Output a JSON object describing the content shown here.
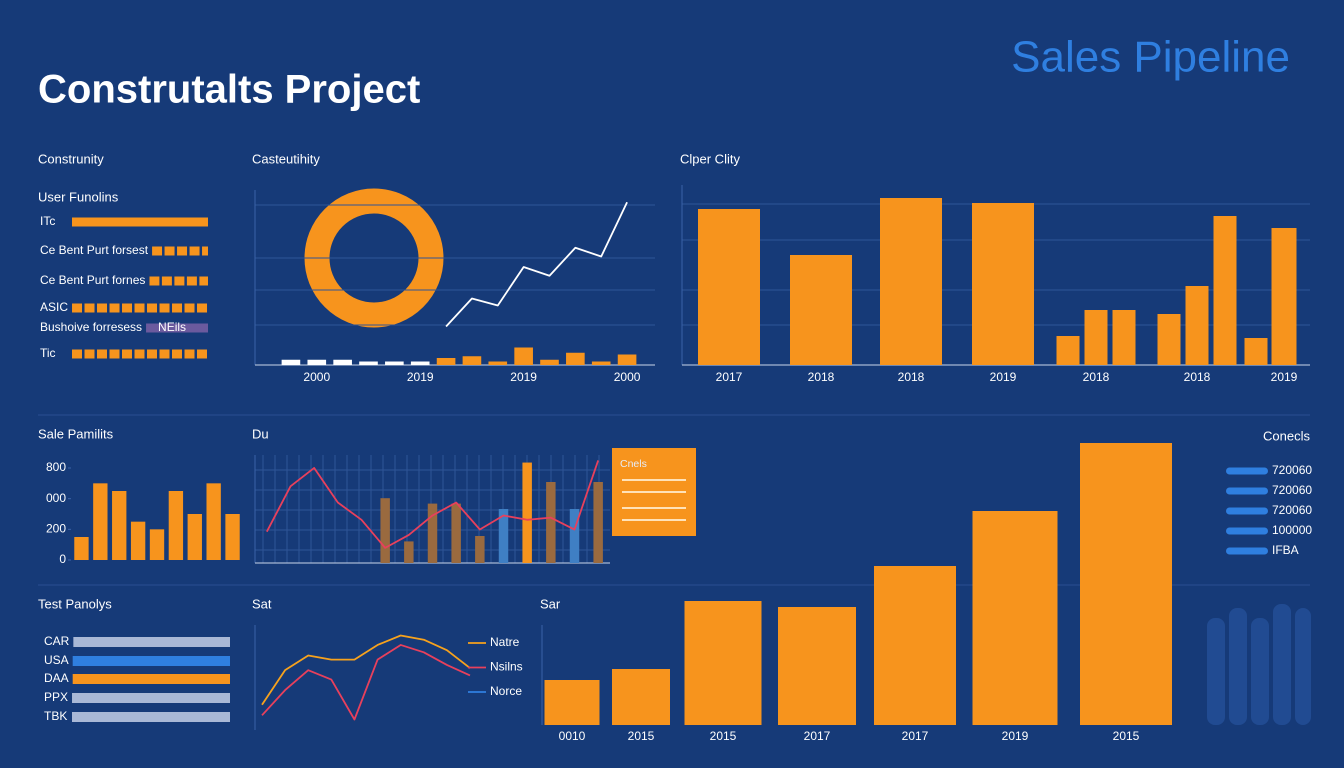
{
  "header": {
    "title": "Construtalts Project",
    "brand": "Sales Pipeline"
  },
  "chart_data": [
    {
      "type": "hbar",
      "title": "Construnity",
      "subtitle": "User Funolins",
      "categories": [
        "ITc",
        "Ce Bent Purt forsest",
        "Ce Bent Purt fornes",
        "ASIC",
        "Bushoive forresess",
        "Tic"
      ],
      "values": [
        100,
        100,
        100,
        100,
        100,
        100
      ],
      "xlim": [
        0,
        100
      ],
      "colors": [
        "#f7941d",
        "#f7941d",
        "#f7941d",
        "#f7941d",
        "#6b5a9e",
        "#f7941d"
      ],
      "segmented": [
        false,
        true,
        true,
        true,
        false,
        true
      ],
      "annotation": "NEils"
    },
    {
      "type": "combo",
      "title": "Casteutihity",
      "categories": [
        null,
        "2000",
        null,
        null,
        null,
        "2019",
        null,
        null,
        null,
        "2019",
        null,
        null,
        null,
        "2000"
      ],
      "ylim": [
        0,
        100
      ],
      "series": [
        {
          "kind": "bar",
          "color": "#ffffff",
          "values": [
            3,
            3,
            3,
            2,
            2,
            2,
            null,
            null,
            null,
            null,
            null,
            null,
            null,
            null
          ]
        },
        {
          "kind": "bar",
          "color": "#f7941d",
          "values": [
            null,
            null,
            null,
            null,
            null,
            null,
            4,
            5,
            2,
            10,
            3,
            7,
            2,
            6
          ]
        },
        {
          "kind": "line",
          "color": "#ffffff",
          "values": [
            null,
            null,
            null,
            null,
            null,
            null,
            22,
            38,
            34,
            56,
            51,
            67,
            62,
            93
          ]
        }
      ]
    },
    {
      "type": "bar",
      "title": "Clper Clity",
      "categories": [
        "2017",
        "2018",
        "2018",
        "2019",
        null,
        "2018",
        null,
        null,
        "2018",
        null,
        null,
        "2019"
      ],
      "values": [
        156,
        110,
        167,
        162,
        29,
        55,
        55,
        51,
        79,
        149,
        27,
        137
      ],
      "ylim": [
        0,
        180
      ],
      "color": "#f7941d"
    },
    {
      "type": "bar",
      "title": "Sale Pamilits",
      "values": [
        150,
        500,
        450,
        250,
        200,
        450,
        300,
        500,
        300
      ],
      "ylim": [
        0,
        600
      ],
      "yticks": [
        0,
        200,
        {
          "value": 400,
          "label": "000"
        },
        {
          "value": 600,
          "label": "800"
        }
      ],
      "color": "#f7941d"
    },
    {
      "type": "combo",
      "title": "Du",
      "annotation": "Cnels",
      "ylim": [
        0,
        100
      ],
      "series": [
        {
          "kind": "bar",
          "color": "#9a6a3f",
          "values": [
            null,
            null,
            null,
            null,
            null,
            60,
            20,
            55,
            55,
            25,
            null,
            null,
            75,
            null,
            75
          ]
        },
        {
          "kind": "bar",
          "color": "#f7941d",
          "values": [
            null,
            null,
            null,
            null,
            null,
            null,
            null,
            null,
            null,
            null,
            null,
            93,
            null,
            null,
            null
          ]
        },
        {
          "kind": "bar",
          "color": "#3f7fc4",
          "values": [
            null,
            null,
            null,
            null,
            null,
            null,
            null,
            null,
            null,
            null,
            50,
            null,
            null,
            50,
            null
          ]
        },
        {
          "kind": "line",
          "color": "#e8405c",
          "values": [
            29,
            71,
            88,
            56,
            40,
            14,
            26,
            44,
            56,
            31,
            44,
            40,
            42,
            31,
            95
          ]
        }
      ]
    },
    {
      "type": "hbar",
      "title": "Test Panolys",
      "categories": [
        "CAR",
        "USA",
        "DAA",
        "PPX",
        "TBK"
      ],
      "values": [
        100,
        100,
        100,
        100,
        100
      ],
      "xlim": [
        0,
        100
      ],
      "colors": [
        "#a9b8d6",
        "#2f7fe0",
        "#f7941d",
        "#a9b8d6",
        "#a9b8d6"
      ]
    },
    {
      "type": "line",
      "title": "Sat",
      "ylim": [
        0,
        100
      ],
      "series": [
        {
          "name": "Natre",
          "color": "#f7a21d",
          "values": [
            24,
            57,
            71,
            67,
            67,
            81,
            90,
            86,
            76,
            59
          ]
        },
        {
          "name": "Nsilns",
          "color": "#e8405c",
          "values": [
            14,
            38,
            57,
            48,
            10,
            67,
            81,
            74,
            62,
            52
          ]
        },
        {
          "name": "Norce",
          "color": "#2f7fe0",
          "values": [
            null,
            null,
            null,
            null,
            null,
            null,
            null,
            null,
            null,
            null
          ]
        }
      ]
    },
    {
      "type": "bar",
      "title": "Sar",
      "categories": [
        "0010",
        "2015",
        "2015",
        "2017",
        "2017",
        "2019",
        "2015"
      ],
      "values": [
        45,
        56,
        124,
        118,
        159,
        214,
        282
      ],
      "ylim": [
        0,
        300
      ],
      "color": "#f7941d"
    }
  ],
  "contacts": {
    "title": "Conecls",
    "items": [
      "720060",
      "720060",
      "720060",
      "100000",
      "IFBA"
    ]
  }
}
